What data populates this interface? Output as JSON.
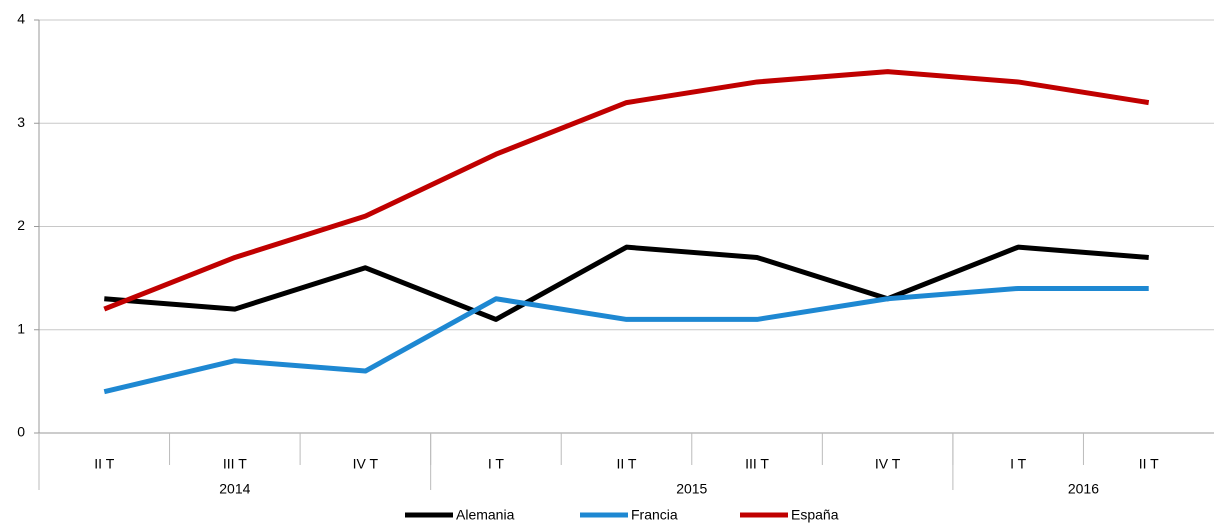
{
  "chart_data": {
    "type": "line",
    "categories": [
      "II T",
      "III T",
      "IV T",
      "I T",
      "II T",
      "III T",
      "IV T",
      "I T",
      "II T"
    ],
    "groups": [
      {
        "label": "2014",
        "count": 3
      },
      {
        "label": "2015",
        "count": 4
      },
      {
        "label": "2016",
        "count": 2
      }
    ],
    "series": [
      {
        "name": "Alemania",
        "color": "#000000",
        "values": [
          1.3,
          1.2,
          1.6,
          1.1,
          1.8,
          1.7,
          1.3,
          1.8,
          1.7
        ]
      },
      {
        "name": "Francia",
        "color": "#1e88d2",
        "values": [
          0.4,
          0.7,
          0.6,
          1.3,
          1.1,
          1.1,
          1.3,
          1.4,
          1.4
        ]
      },
      {
        "name": "España",
        "color": "#c00000",
        "values": [
          1.2,
          1.7,
          2.1,
          2.7,
          3.2,
          3.4,
          3.5,
          3.4,
          3.2
        ]
      }
    ],
    "ylim": [
      0,
      4
    ],
    "yticks": [
      0,
      1,
      2,
      3,
      4
    ],
    "grid": true,
    "legend": "bottom"
  }
}
